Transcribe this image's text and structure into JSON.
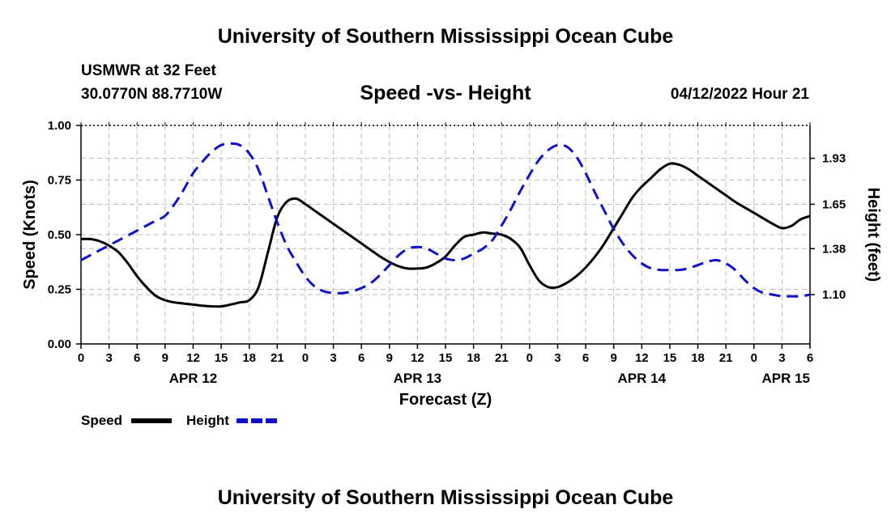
{
  "header": {
    "title": "University of Southern Mississippi Ocean Cube",
    "station_name": "USMWR at 32 Feet",
    "station_coords": "30.0770N  88.7710W",
    "subtitle": "Speed -vs- Height",
    "datetime": "04/12/2022 Hour 21"
  },
  "footer": {
    "title": "University of Southern Mississippi Ocean Cube"
  },
  "colors": {
    "speed": "#000000",
    "height": "#1010cc",
    "grid": "#bbbbbb"
  },
  "chart_data": {
    "type": "line",
    "title": "Speed -vs- Height",
    "xlabel": "Forecast (Z)",
    "ylabel": "Speed (Knots)",
    "y2label": "Height (feet)",
    "x_unit": "hours from APR 12 00Z",
    "xlim": [
      0,
      78
    ],
    "ylim": [
      0,
      1.0
    ],
    "y2lim": [
      0.8,
      2.13
    ],
    "x_ticks": [
      0,
      3,
      6,
      9,
      12,
      15,
      18,
      21,
      24,
      27,
      30,
      33,
      36,
      39,
      42,
      45,
      48,
      51,
      54,
      57,
      60,
      63,
      66,
      69,
      72,
      75,
      78
    ],
    "x_tick_labels": [
      "0",
      "3",
      "6",
      "9",
      "12",
      "15",
      "18",
      "21",
      "0",
      "3",
      "6",
      "9",
      "12",
      "15",
      "18",
      "21",
      "0",
      "3",
      "6",
      "9",
      "12",
      "15",
      "18",
      "21",
      "0",
      "3",
      "6"
    ],
    "day_labels": [
      {
        "x": 12,
        "label": "APR 12"
      },
      {
        "x": 36,
        "label": "APR 13"
      },
      {
        "x": 60,
        "label": "APR 14"
      },
      {
        "x": 78,
        "label": "APR 15"
      }
    ],
    "y_ticks": [
      0,
      0.25,
      0.5,
      0.75,
      1.0
    ],
    "y_tick_labels": [
      "0.00",
      "0.25",
      "0.50",
      "0.75",
      "1.00"
    ],
    "y2_ticks": [
      1.1,
      1.38,
      1.65,
      1.93
    ],
    "y2_tick_labels": [
      "1.10",
      "1.38",
      "1.65",
      "1.93"
    ],
    "grid": true,
    "legend": {
      "placement": "bottom-left",
      "entries": [
        {
          "name": "Speed",
          "style": "solid"
        },
        {
          "name": "Height",
          "style": "dashed"
        }
      ]
    },
    "series": [
      {
        "name": "Speed",
        "axis": "left",
        "style": "solid",
        "x": [
          0,
          1,
          2,
          3,
          4,
          5,
          6,
          7,
          8,
          9,
          10,
          11,
          12,
          13,
          14,
          15,
          16,
          17,
          18,
          19,
          20,
          21,
          22,
          23,
          24,
          25,
          26,
          27,
          28,
          29,
          30,
          31,
          32,
          33,
          34,
          35,
          36,
          37,
          38,
          39,
          40,
          41,
          42,
          43,
          44,
          45,
          46,
          47,
          48,
          49,
          50,
          51,
          52,
          53,
          54,
          55,
          56,
          57,
          58,
          59,
          60,
          61,
          62,
          63,
          64,
          65,
          66,
          67,
          68,
          69,
          70,
          71,
          72,
          73,
          74,
          75,
          76,
          77,
          78
        ],
        "values": [
          0.48,
          0.48,
          0.47,
          0.45,
          0.42,
          0.37,
          0.31,
          0.26,
          0.22,
          0.2,
          0.19,
          0.185,
          0.18,
          0.175,
          0.172,
          0.172,
          0.18,
          0.19,
          0.2,
          0.26,
          0.42,
          0.58,
          0.65,
          0.665,
          0.64,
          0.61,
          0.58,
          0.55,
          0.52,
          0.49,
          0.46,
          0.43,
          0.4,
          0.375,
          0.355,
          0.345,
          0.345,
          0.35,
          0.37,
          0.4,
          0.45,
          0.49,
          0.5,
          0.51,
          0.505,
          0.5,
          0.48,
          0.44,
          0.36,
          0.29,
          0.26,
          0.26,
          0.28,
          0.31,
          0.35,
          0.4,
          0.46,
          0.53,
          0.6,
          0.67,
          0.72,
          0.76,
          0.8,
          0.825,
          0.82,
          0.8,
          0.77,
          0.74,
          0.71,
          0.68,
          0.65,
          0.625,
          0.6,
          0.575,
          0.55,
          0.53,
          0.54,
          0.57,
          0.585
        ]
      },
      {
        "name": "Height",
        "axis": "right",
        "style": "dashed",
        "x": [
          0,
          1,
          2,
          3,
          4,
          5,
          6,
          7,
          8,
          9,
          10,
          11,
          12,
          13,
          14,
          15,
          16,
          17,
          18,
          19,
          20,
          21,
          22,
          23,
          24,
          25,
          26,
          27,
          28,
          29,
          30,
          31,
          32,
          33,
          34,
          35,
          36,
          37,
          38,
          39,
          40,
          41,
          42,
          43,
          44,
          45,
          46,
          47,
          48,
          49,
          50,
          51,
          52,
          53,
          54,
          55,
          56,
          57,
          58,
          59,
          60,
          61,
          62,
          63,
          64,
          65,
          66,
          67,
          68,
          69,
          70,
          71,
          72,
          73,
          74,
          75,
          76,
          77,
          78
        ],
        "values": [
          1.31,
          1.34,
          1.37,
          1.4,
          1.43,
          1.46,
          1.49,
          1.52,
          1.55,
          1.58,
          1.65,
          1.74,
          1.84,
          1.91,
          1.97,
          2.01,
          2.02,
          2.01,
          1.96,
          1.86,
          1.7,
          1.54,
          1.4,
          1.3,
          1.21,
          1.15,
          1.12,
          1.11,
          1.11,
          1.12,
          1.14,
          1.17,
          1.22,
          1.28,
          1.34,
          1.38,
          1.39,
          1.38,
          1.35,
          1.32,
          1.31,
          1.32,
          1.35,
          1.38,
          1.43,
          1.52,
          1.62,
          1.73,
          1.83,
          1.92,
          1.98,
          2.01,
          2.0,
          1.94,
          1.84,
          1.72,
          1.61,
          1.5,
          1.41,
          1.34,
          1.29,
          1.26,
          1.25,
          1.25,
          1.25,
          1.26,
          1.28,
          1.3,
          1.31,
          1.29,
          1.25,
          1.19,
          1.14,
          1.11,
          1.1,
          1.09,
          1.09,
          1.09,
          1.1
        ]
      }
    ]
  }
}
